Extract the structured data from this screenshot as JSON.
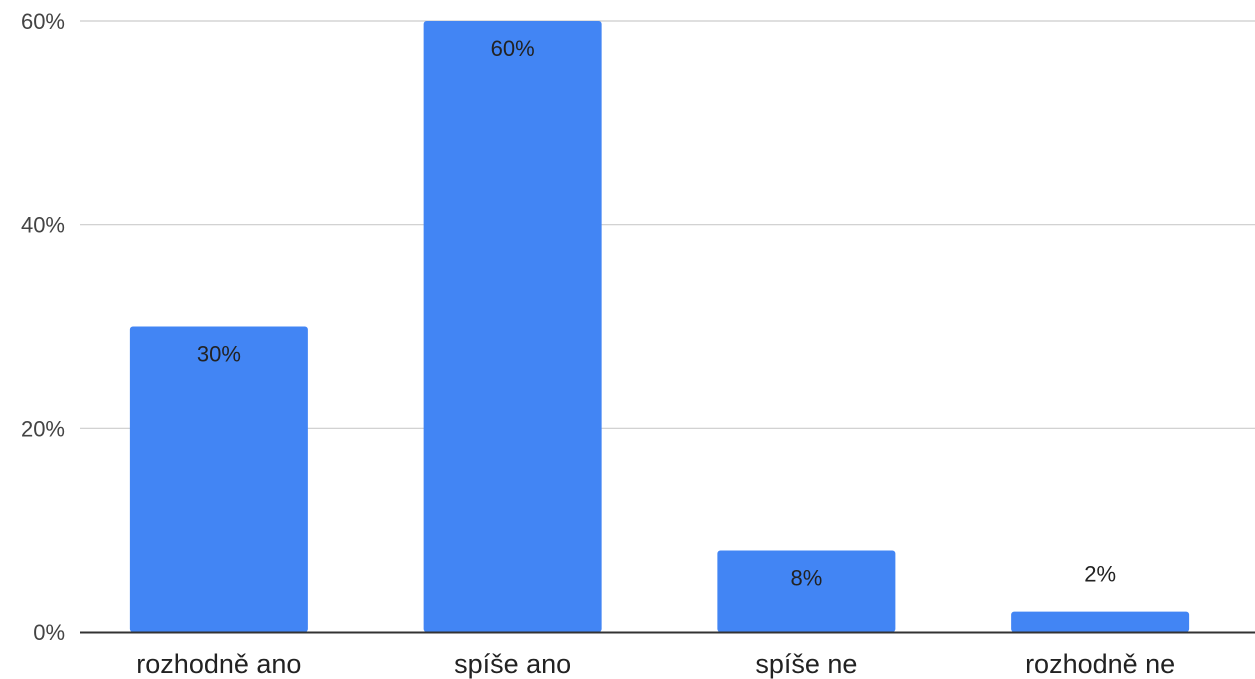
{
  "chart_data": {
    "type": "bar",
    "categories": [
      "rozhodně ano",
      "spíše ano",
      "spíše ne",
      "rozhodně ne"
    ],
    "values": [
      30,
      60,
      8,
      2
    ],
    "value_labels": [
      "30%",
      "60%",
      "8%",
      "2%"
    ],
    "yticks": [
      0,
      20,
      40,
      60
    ],
    "ytick_labels": [
      "0%",
      "20%",
      "40%",
      "60%"
    ],
    "ylim": [
      0,
      60
    ],
    "grid": true,
    "legend": "none",
    "bar_color": "#4285F4",
    "grid_color": "#CCCCCC",
    "axis_color": "#333333"
  }
}
